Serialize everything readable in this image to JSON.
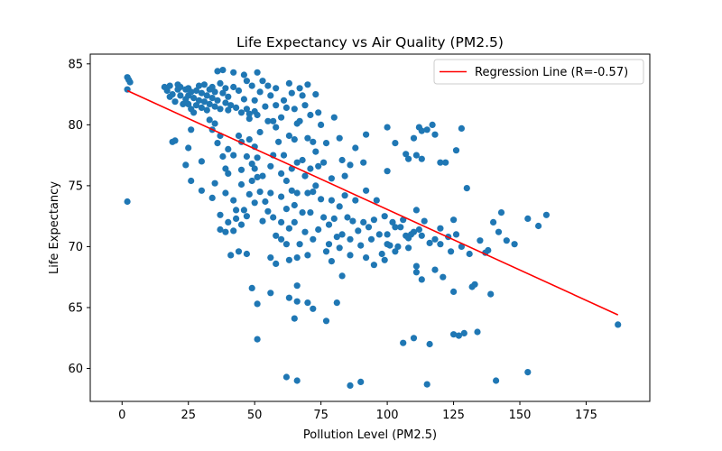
{
  "chart_data": {
    "type": "scatter",
    "title": "Life Expectancy vs Air Quality (PM2.5)",
    "xlabel": "Pollution Level (PM2.5)",
    "ylabel": "Life Expectancy",
    "xlim": [
      -12,
      199
    ],
    "ylim": [
      57.3,
      85.8
    ],
    "x_ticks": [
      0,
      25,
      50,
      75,
      100,
      125,
      150,
      175
    ],
    "y_ticks": [
      60,
      65,
      70,
      75,
      80,
      85
    ],
    "grid": false,
    "legend_position": "top-right",
    "colors": {
      "points": "#1f77b4",
      "regression": "#ff0000"
    },
    "regression": {
      "label": "Regression Line (R=-0.57)",
      "x": [
        2,
        187
      ],
      "y": [
        82.8,
        64.4
      ]
    },
    "points": [
      [
        2,
        83.9
      ],
      [
        2.5,
        83.7
      ],
      [
        3,
        83.5
      ],
      [
        2,
        82.9
      ],
      [
        2,
        73.7
      ],
      [
        16,
        83.1
      ],
      [
        17,
        82.8
      ],
      [
        18,
        83.2
      ],
      [
        18,
        82.3
      ],
      [
        19,
        82.5
      ],
      [
        20,
        81.9
      ],
      [
        21,
        83.3
      ],
      [
        21,
        82.9
      ],
      [
        22,
        83.1
      ],
      [
        22,
        82.4
      ],
      [
        23,
        81.7
      ],
      [
        24,
        82.9
      ],
      [
        24,
        82.1
      ],
      [
        25,
        83.0
      ],
      [
        25,
        82.4
      ],
      [
        25,
        81.7
      ],
      [
        26,
        81.3
      ],
      [
        26,
        82.7
      ],
      [
        27,
        81.0
      ],
      [
        27,
        82.2
      ],
      [
        28,
        82.8
      ],
      [
        28,
        81.6
      ],
      [
        29,
        83.2
      ],
      [
        29,
        82.0
      ],
      [
        30,
        81.4
      ],
      [
        30,
        82.6
      ],
      [
        31,
        81.9
      ],
      [
        31,
        83.3
      ],
      [
        32,
        82.4
      ],
      [
        32,
        81.2
      ],
      [
        33,
        82.9
      ],
      [
        33,
        81.7
      ],
      [
        34,
        83.1
      ],
      [
        34,
        82.2
      ],
      [
        35,
        82.7
      ],
      [
        35,
        81.5
      ],
      [
        36,
        84.4
      ],
      [
        36,
        82.0
      ],
      [
        37,
        83.4
      ],
      [
        37,
        81.3
      ],
      [
        38,
        84.5
      ],
      [
        38,
        82.6
      ],
      [
        39,
        81.8
      ],
      [
        39,
        83.0
      ],
      [
        40,
        81.2
      ],
      [
        40,
        82.3
      ],
      [
        41,
        81.6
      ],
      [
        42,
        84.3
      ],
      [
        42,
        83.1
      ],
      [
        43,
        81.4
      ],
      [
        44,
        82.8
      ],
      [
        45,
        81.0
      ],
      [
        46,
        84.1
      ],
      [
        46,
        82.1
      ],
      [
        47,
        83.6
      ],
      [
        47,
        81.3
      ],
      [
        48,
        80.9
      ],
      [
        49,
        83.2
      ],
      [
        50,
        82.0
      ],
      [
        50,
        81.1
      ],
      [
        51,
        84.3
      ],
      [
        51,
        80.8
      ],
      [
        52,
        82.7
      ],
      [
        53,
        83.6
      ],
      [
        54,
        81.5
      ],
      [
        55,
        83.2
      ],
      [
        56,
        82.4
      ],
      [
        57,
        80.3
      ],
      [
        58,
        81.6
      ],
      [
        58,
        83.0
      ],
      [
        60,
        80.6
      ],
      [
        61,
        82.0
      ],
      [
        62,
        81.4
      ],
      [
        63,
        83.4
      ],
      [
        64,
        82.6
      ],
      [
        65,
        81.3
      ],
      [
        66,
        80.1
      ],
      [
        67,
        83.0
      ],
      [
        68,
        82.4
      ],
      [
        69,
        81.6
      ],
      [
        70,
        83.3
      ],
      [
        71,
        80.8
      ],
      [
        72,
        78.6
      ],
      [
        73,
        82.5
      ],
      [
        74,
        81.0
      ],
      [
        19,
        78.6
      ],
      [
        20,
        78.7
      ],
      [
        25,
        78.1
      ],
      [
        26,
        79.6
      ],
      [
        30,
        77.0
      ],
      [
        33,
        80.4
      ],
      [
        34,
        79.6
      ],
      [
        35,
        80.1
      ],
      [
        36,
        78.5
      ],
      [
        37,
        79.1
      ],
      [
        38,
        77.4
      ],
      [
        39,
        76.4
      ],
      [
        40,
        78.0
      ],
      [
        40,
        76.0
      ],
      [
        42,
        77.5
      ],
      [
        44,
        79.1
      ],
      [
        45,
        78.6
      ],
      [
        45,
        76.3
      ],
      [
        47,
        77.4
      ],
      [
        48,
        80.5
      ],
      [
        48,
        78.8
      ],
      [
        49,
        76.8
      ],
      [
        50,
        78.2
      ],
      [
        50,
        76.4
      ],
      [
        51,
        77.3
      ],
      [
        52,
        79.4
      ],
      [
        53,
        75.8
      ],
      [
        55,
        80.3
      ],
      [
        56,
        76.6
      ],
      [
        57,
        77.5
      ],
      [
        58,
        79.8
      ],
      [
        59,
        78.6
      ],
      [
        60,
        76.0
      ],
      [
        61,
        77.5
      ],
      [
        62,
        75.4
      ],
      [
        63,
        79.1
      ],
      [
        64,
        76.4
      ],
      [
        65,
        78.8
      ],
      [
        66,
        76.9
      ],
      [
        67,
        80.3
      ],
      [
        68,
        77.1
      ],
      [
        69,
        75.8
      ],
      [
        70,
        78.9
      ],
      [
        71,
        76.4
      ],
      [
        72,
        74.5
      ],
      [
        73,
        77.8
      ],
      [
        74,
        76.6
      ],
      [
        75,
        80.0
      ],
      [
        76,
        76.9
      ],
      [
        77,
        78.5
      ],
      [
        79,
        75.6
      ],
      [
        80,
        80.6
      ],
      [
        82,
        78.9
      ],
      [
        83,
        77.1
      ],
      [
        84,
        75.8
      ],
      [
        86,
        76.7
      ],
      [
        88,
        78.1
      ],
      [
        91,
        76.9
      ],
      [
        92,
        79.2
      ],
      [
        100,
        79.8
      ],
      [
        100,
        76.2
      ],
      [
        103,
        78.5
      ],
      [
        107,
        77.6
      ],
      [
        108,
        77.2
      ],
      [
        110,
        78.9
      ],
      [
        111,
        77.5
      ],
      [
        112,
        79.8
      ],
      [
        113,
        79.5
      ],
      [
        113,
        77.2
      ],
      [
        115,
        79.6
      ],
      [
        117,
        80.0
      ],
      [
        118,
        79.2
      ],
      [
        120,
        76.9
      ],
      [
        122,
        76.9
      ],
      [
        126,
        77.9
      ],
      [
        128,
        79.7
      ],
      [
        24,
        76.7
      ],
      [
        26,
        75.4
      ],
      [
        30,
        74.6
      ],
      [
        34,
        74.0
      ],
      [
        35,
        75.2
      ],
      [
        37,
        72.6
      ],
      [
        39,
        74.4
      ],
      [
        40,
        72.0
      ],
      [
        42,
        73.8
      ],
      [
        43,
        73.0
      ],
      [
        45,
        75.1
      ],
      [
        45,
        71.8
      ],
      [
        46,
        73.0
      ],
      [
        47,
        72.5
      ],
      [
        48,
        74.3
      ],
      [
        49,
        75.4
      ],
      [
        50,
        73.6
      ],
      [
        51,
        75.7
      ],
      [
        52,
        74.5
      ],
      [
        53,
        72.1
      ],
      [
        54,
        73.7
      ],
      [
        55,
        72.9
      ],
      [
        56,
        74.4
      ],
      [
        57,
        72.4
      ],
      [
        58,
        70.9
      ],
      [
        60,
        74.1
      ],
      [
        60,
        72.0
      ],
      [
        62,
        73.1
      ],
      [
        63,
        71.5
      ],
      [
        64,
        74.6
      ],
      [
        65,
        73.4
      ],
      [
        65,
        72.0
      ],
      [
        66,
        74.4
      ],
      [
        67,
        70.2
      ],
      [
        68,
        72.8
      ],
      [
        69,
        71.2
      ],
      [
        70,
        74.4
      ],
      [
        71,
        72.8
      ],
      [
        72,
        70.6
      ],
      [
        73,
        75.0
      ],
      [
        74,
        71.4
      ],
      [
        75,
        73.9
      ],
      [
        76,
        72.4
      ],
      [
        77,
        69.6
      ],
      [
        78,
        71.8
      ],
      [
        79,
        73.8
      ],
      [
        80,
        72.3
      ],
      [
        81,
        70.8
      ],
      [
        82,
        73.3
      ],
      [
        83,
        71.0
      ],
      [
        84,
        74.2
      ],
      [
        85,
        72.4
      ],
      [
        86,
        70.6
      ],
      [
        87,
        72.1
      ],
      [
        88,
        73.8
      ],
      [
        89,
        71.3
      ],
      [
        90,
        70.1
      ],
      [
        91,
        72.0
      ],
      [
        92,
        74.6
      ],
      [
        93,
        71.6
      ],
      [
        94,
        70.6
      ],
      [
        95,
        72.2
      ],
      [
        96,
        73.8
      ],
      [
        97,
        71.0
      ],
      [
        98,
        69.4
      ],
      [
        99,
        72.5
      ],
      [
        100,
        71.0
      ],
      [
        101,
        70.1
      ],
      [
        102,
        72.0
      ],
      [
        103,
        71.6
      ],
      [
        104,
        70.0
      ],
      [
        105,
        71.6
      ],
      [
        106,
        72.2
      ],
      [
        107,
        70.9
      ],
      [
        108,
        69.9
      ],
      [
        110,
        71.2
      ],
      [
        111,
        73.0
      ],
      [
        112,
        71.4
      ],
      [
        113,
        70.9
      ],
      [
        114,
        72.1
      ],
      [
        116,
        70.3
      ],
      [
        118,
        70.6
      ],
      [
        120,
        71.5
      ],
      [
        123,
        70.8
      ],
      [
        125,
        72.2
      ],
      [
        126,
        71.0
      ],
      [
        128,
        70.0
      ],
      [
        130,
        74.8
      ],
      [
        131,
        69.4
      ],
      [
        135,
        70.5
      ],
      [
        138,
        69.7
      ],
      [
        140,
        72.0
      ],
      [
        142,
        71.2
      ],
      [
        143,
        72.8
      ],
      [
        145,
        70.5
      ],
      [
        148,
        70.2
      ],
      [
        153,
        72.3
      ],
      [
        157,
        71.7
      ],
      [
        160,
        72.6
      ],
      [
        124,
        69.6
      ],
      [
        120,
        70.2
      ],
      [
        137,
        69.5
      ],
      [
        37,
        71.4
      ],
      [
        39,
        71.2
      ],
      [
        41,
        69.3
      ],
      [
        42,
        71.3
      ],
      [
        43,
        72.3
      ],
      [
        44,
        69.6
      ],
      [
        47,
        69.4
      ],
      [
        56,
        69.1
      ],
      [
        58,
        68.6
      ],
      [
        60,
        70.6
      ],
      [
        62,
        70.2
      ],
      [
        63,
        68.9
      ],
      [
        66,
        69.1
      ],
      [
        70,
        69.3
      ],
      [
        78,
        70.2
      ],
      [
        79,
        68.8
      ],
      [
        82,
        69.9
      ],
      [
        86,
        69.3
      ],
      [
        92,
        69.1
      ],
      [
        95,
        68.5
      ],
      [
        99,
        68.9
      ],
      [
        103,
        69.6
      ],
      [
        108,
        70.7
      ],
      [
        111,
        68.4
      ],
      [
        113,
        67.3
      ],
      [
        118,
        68.1
      ],
      [
        121,
        67.5
      ],
      [
        133,
        66.9
      ],
      [
        139,
        66.1
      ],
      [
        125,
        66.3
      ],
      [
        132,
        66.7
      ],
      [
        49,
        66.6
      ],
      [
        51,
        65.3
      ],
      [
        56,
        66.2
      ],
      [
        63,
        65.8
      ],
      [
        65,
        64.1
      ],
      [
        66,
        66.8
      ],
      [
        66,
        65.5
      ],
      [
        70,
        65.4
      ],
      [
        72,
        64.9
      ],
      [
        77,
        63.9
      ],
      [
        81,
        65.4
      ],
      [
        83,
        67.6
      ],
      [
        111,
        67.9
      ],
      [
        109,
        71.0
      ],
      [
        100,
        70.2
      ],
      [
        51,
        62.4
      ],
      [
        106,
        62.1
      ],
      [
        110,
        62.5
      ],
      [
        116,
        62.0
      ],
      [
        125,
        62.8
      ],
      [
        127,
        62.7
      ],
      [
        129,
        62.9
      ],
      [
        134,
        63.0
      ],
      [
        187,
        63.6
      ],
      [
        62,
        59.3
      ],
      [
        66,
        59.0
      ],
      [
        86,
        58.6
      ],
      [
        90,
        58.9
      ],
      [
        115,
        58.7
      ],
      [
        141,
        59.0
      ],
      [
        153,
        59.7
      ]
    ]
  }
}
